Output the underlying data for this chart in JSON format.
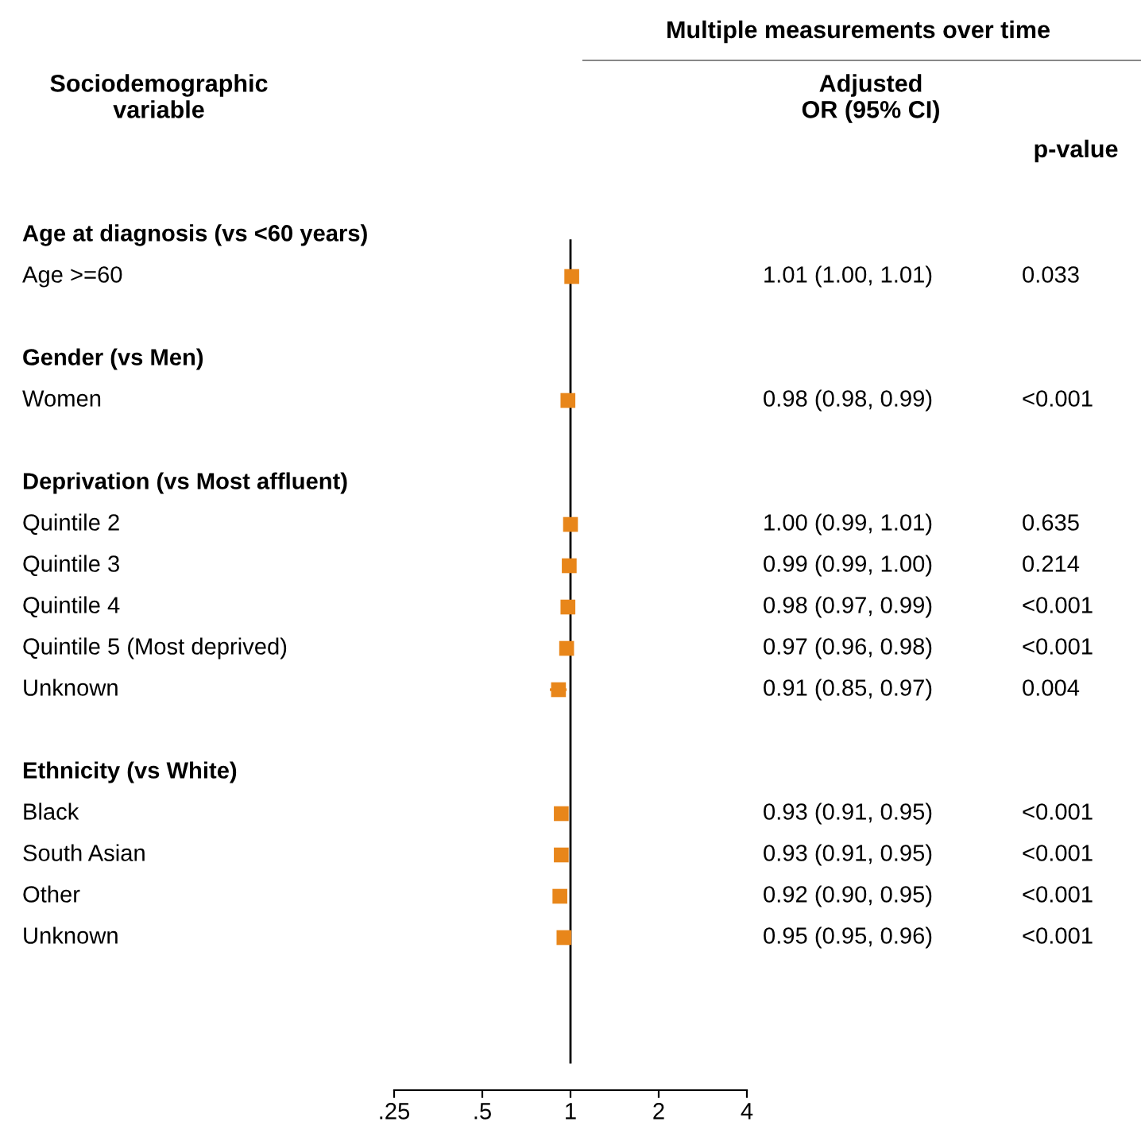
{
  "chart_data": {
    "type": "scatter",
    "orientation": "horizontal",
    "log": "x",
    "title": "Multiple measurements over time",
    "ylabel": "Sociodemographic\nvariable",
    "annotations": [
      "Adjusted\nOR (95% CI)",
      "p-value",
      "0.033",
      "<0.001",
      "0.635",
      "0.214",
      "<0.001",
      "<0.001",
      "0.004",
      "<0.001",
      "<0.001",
      "<0.001",
      "<0.001"
    ],
    "categories": [
      "Age at diagnosis (vs <60 years)",
      "Age >=60",
      null,
      "Gender (vs Men)",
      "Women",
      null,
      "Deprivation (vs Most affluent)",
      "Quintile 2",
      "Quintile 3",
      "Quintile 4",
      "Quintile 5 (Most deprived)",
      "Unknown",
      null,
      "Ethnicity (vs White)",
      "Black",
      "South Asian",
      "Other",
      "Unknown"
    ],
    "series": [
      {
        "color": "#e8861a",
        "values": [
          null,
          1.01,
          null,
          null,
          0.98,
          null,
          null,
          1.0,
          0.99,
          0.98,
          0.97,
          0.91,
          null,
          null,
          0.93,
          0.93,
          0.92,
          0.95
        ],
        "errors": [
          null,
          null,
          null,
          null,
          null,
          null,
          null,
          null,
          null,
          null,
          null,
          [
            0.85,
            0.97
          ],
          null,
          null,
          null,
          null,
          null,
          null
        ],
        "value_labels": [
          null,
          "1.01 (1.00, 1.01)",
          null,
          null,
          "0.98 (0.98, 0.99)",
          null,
          null,
          "1.00 (0.99, 1.01)",
          "0.99 (0.99, 1.00)",
          "0.98 (0.97, 0.99)",
          "0.97 (0.96, 0.98)",
          "0.91 (0.85, 0.97)",
          null,
          null,
          "0.93 (0.91, 0.95)",
          "0.93 (0.91, 0.95)",
          "0.92 (0.90, 0.95)",
          "0.95 (0.95, 0.96)"
        ]
      }
    ],
    "xlim": [
      0.25,
      4
    ],
    "xticks": [
      {
        "value": 0.25,
        "label": ".25"
      },
      {
        "value": 0.5,
        "label": ".5"
      },
      1,
      2,
      4
    ],
    "ref_lines": [
      {
        "axis": "x",
        "value": 1,
        "color": "#000000"
      }
    ],
    "marker": "square"
  }
}
